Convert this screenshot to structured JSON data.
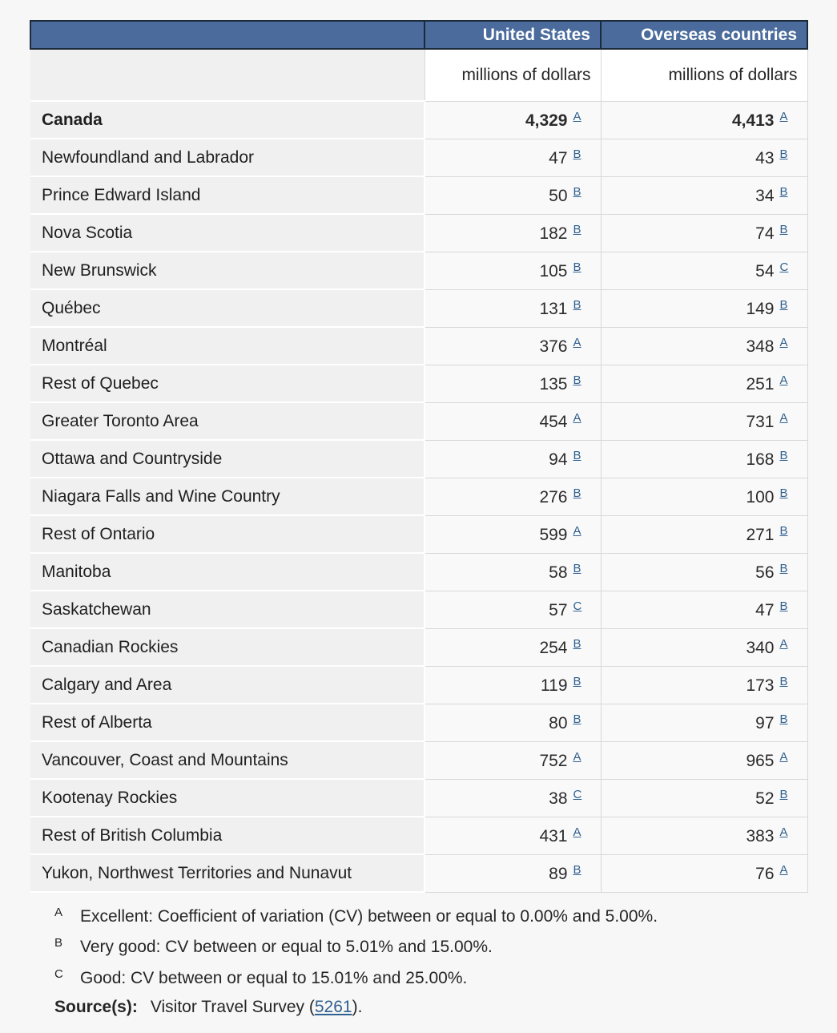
{
  "table": {
    "columns": [
      {
        "label": "United States",
        "unit": "millions of dollars"
      },
      {
        "label": "Overseas countries",
        "unit": "millions of dollars"
      }
    ],
    "rows": [
      {
        "label": "Canada",
        "bold": true,
        "us": "4,329",
        "us_flag": "A",
        "os": "4,413",
        "os_flag": "A"
      },
      {
        "label": "Newfoundland and Labrador",
        "bold": false,
        "us": "47",
        "us_flag": "B",
        "os": "43",
        "os_flag": "B"
      },
      {
        "label": "Prince Edward Island",
        "bold": false,
        "us": "50",
        "us_flag": "B",
        "os": "34",
        "os_flag": "B"
      },
      {
        "label": "Nova Scotia",
        "bold": false,
        "us": "182",
        "us_flag": "B",
        "os": "74",
        "os_flag": "B"
      },
      {
        "label": "New Brunswick",
        "bold": false,
        "us": "105",
        "us_flag": "B",
        "os": "54",
        "os_flag": "C"
      },
      {
        "label": "Québec",
        "bold": false,
        "us": "131",
        "us_flag": "B",
        "os": "149",
        "os_flag": "B"
      },
      {
        "label": "Montréal",
        "bold": false,
        "us": "376",
        "us_flag": "A",
        "os": "348",
        "os_flag": "A"
      },
      {
        "label": "Rest of Quebec",
        "bold": false,
        "us": "135",
        "us_flag": "B",
        "os": "251",
        "os_flag": "A"
      },
      {
        "label": "Greater Toronto Area",
        "bold": false,
        "us": "454",
        "us_flag": "A",
        "os": "731",
        "os_flag": "A"
      },
      {
        "label": "Ottawa and Countryside",
        "bold": false,
        "us": "94",
        "us_flag": "B",
        "os": "168",
        "os_flag": "B"
      },
      {
        "label": "Niagara Falls and Wine Country",
        "bold": false,
        "us": "276",
        "us_flag": "B",
        "os": "100",
        "os_flag": "B"
      },
      {
        "label": "Rest of Ontario",
        "bold": false,
        "us": "599",
        "us_flag": "A",
        "os": "271",
        "os_flag": "B"
      },
      {
        "label": "Manitoba",
        "bold": false,
        "us": "58",
        "us_flag": "B",
        "os": "56",
        "os_flag": "B"
      },
      {
        "label": "Saskatchewan",
        "bold": false,
        "us": "57",
        "us_flag": "C",
        "os": "47",
        "os_flag": "B"
      },
      {
        "label": "Canadian Rockies",
        "bold": false,
        "us": "254",
        "us_flag": "B",
        "os": "340",
        "os_flag": "A"
      },
      {
        "label": "Calgary and Area",
        "bold": false,
        "us": "119",
        "us_flag": "B",
        "os": "173",
        "os_flag": "B"
      },
      {
        "label": "Rest of Alberta",
        "bold": false,
        "us": "80",
        "us_flag": "B",
        "os": "97",
        "os_flag": "B"
      },
      {
        "label": "Vancouver, Coast and Mountains",
        "bold": false,
        "us": "752",
        "us_flag": "A",
        "os": "965",
        "os_flag": "A"
      },
      {
        "label": "Kootenay Rockies",
        "bold": false,
        "us": "38",
        "us_flag": "C",
        "os": "52",
        "os_flag": "B"
      },
      {
        "label": "Rest of British Columbia",
        "bold": false,
        "us": "431",
        "us_flag": "A",
        "os": "383",
        "os_flag": "A"
      },
      {
        "label": "Yukon, Northwest Territories and Nunavut",
        "bold": false,
        "us": "89",
        "us_flag": "B",
        "os": "76",
        "os_flag": "A"
      }
    ]
  },
  "footnotes": [
    {
      "flag": "A",
      "text": "Excellent: Coefficient of variation (CV) between or equal to 0.00% and 5.00%."
    },
    {
      "flag": "B",
      "text": "Very good: CV between or equal to 5.01% and 15.00%."
    },
    {
      "flag": "C",
      "text": "Good: CV between or equal to 15.01% and 25.00%."
    }
  ],
  "source": {
    "label": "Source(s):",
    "prefix": "Visitor Travel Survey (",
    "link_text": "5261",
    "suffix": ")."
  },
  "colors": {
    "header_bg": "#4a6b9c",
    "header_border": "#1c2b3a",
    "header_text": "#ffffff",
    "label_cell_bg": "#f0f0f0",
    "data_cell_bg": "#f9f9f9",
    "page_bg": "#f7f7f7",
    "flag_link": "#31618f",
    "text": "#262626"
  },
  "chart_data": {
    "type": "table",
    "title": "",
    "categories": [
      "Canada",
      "Newfoundland and Labrador",
      "Prince Edward Island",
      "Nova Scotia",
      "New Brunswick",
      "Québec",
      "Montréal",
      "Rest of Quebec",
      "Greater Toronto Area",
      "Ottawa and Countryside",
      "Niagara Falls and Wine Country",
      "Rest of Ontario",
      "Manitoba",
      "Saskatchewan",
      "Canadian Rockies",
      "Calgary and Area",
      "Rest of Alberta",
      "Vancouver, Coast and Mountains",
      "Kootenay Rockies",
      "Rest of British Columbia",
      "Yukon, Northwest Territories and Nunavut"
    ],
    "series": [
      {
        "name": "United States (millions of dollars)",
        "values": [
          4329,
          47,
          50,
          182,
          105,
          131,
          376,
          135,
          454,
          94,
          276,
          599,
          58,
          57,
          254,
          119,
          80,
          752,
          38,
          431,
          89
        ],
        "quality_flags": [
          "A",
          "B",
          "B",
          "B",
          "B",
          "B",
          "A",
          "B",
          "A",
          "B",
          "B",
          "A",
          "B",
          "C",
          "B",
          "B",
          "B",
          "A",
          "C",
          "A",
          "B"
        ]
      },
      {
        "name": "Overseas countries (millions of dollars)",
        "values": [
          4413,
          43,
          34,
          74,
          54,
          149,
          348,
          251,
          731,
          168,
          100,
          271,
          56,
          47,
          340,
          173,
          97,
          965,
          52,
          383,
          76
        ],
        "quality_flags": [
          "A",
          "B",
          "B",
          "B",
          "C",
          "B",
          "A",
          "A",
          "A",
          "B",
          "B",
          "B",
          "B",
          "B",
          "A",
          "B",
          "B",
          "A",
          "B",
          "A",
          "A"
        ]
      }
    ],
    "legend_position": "none",
    "grid": false
  }
}
